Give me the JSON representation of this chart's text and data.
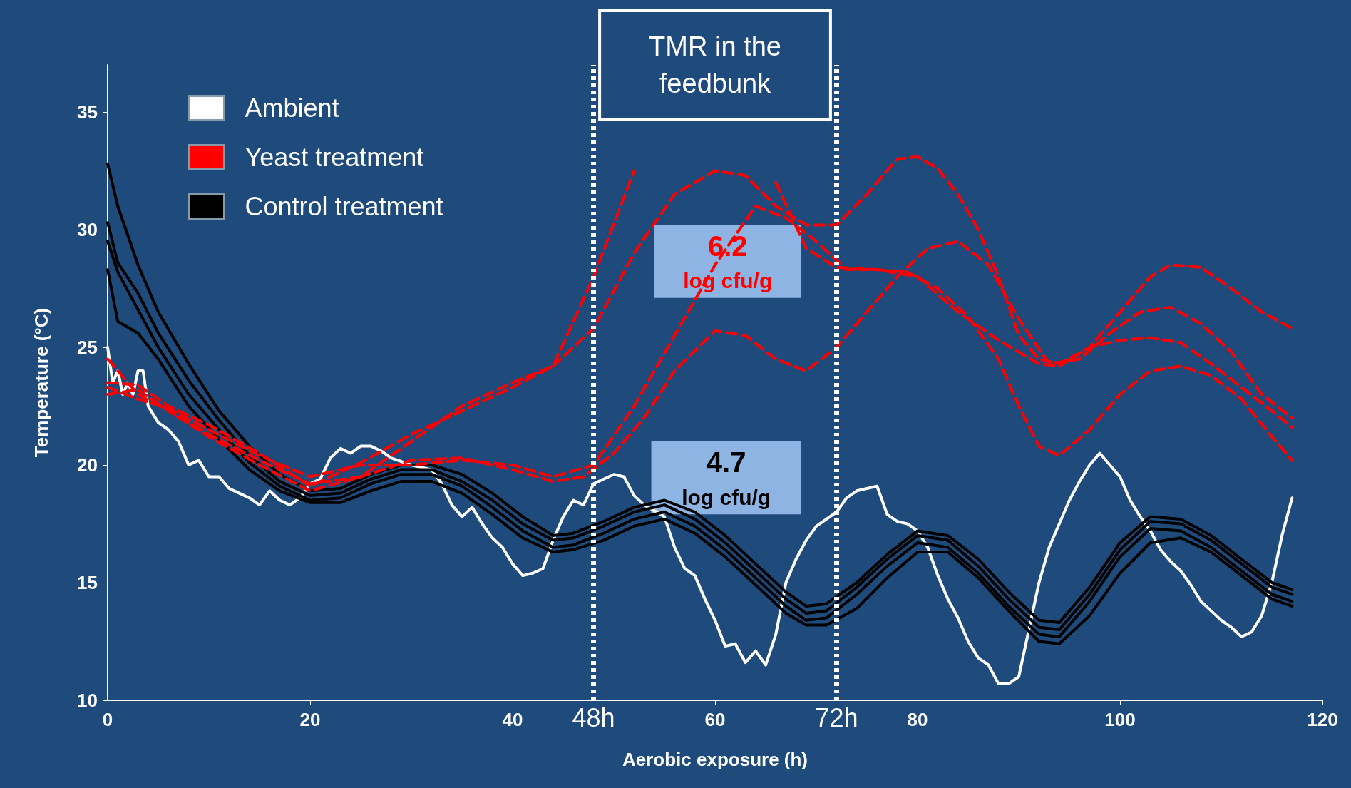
{
  "chart_data": {
    "type": "line",
    "xlabel": "Aerobic exposure (h)",
    "ylabel": "Temperature (°C)",
    "xlim": [
      0,
      120
    ],
    "xticks": [
      0,
      20,
      40,
      60,
      80,
      100,
      120
    ],
    "ylim": [
      10,
      37
    ],
    "yticks": [
      10,
      15,
      20,
      25,
      30,
      35
    ],
    "grid": false,
    "legend": "top left",
    "marker": "none",
    "annotations": [
      "TMR in the\nfeedbunk",
      "6.2\nlog cfu/g",
      "4.7\nlog cfu/g"
    ],
    "ref_lines": [
      {
        "axis": "x",
        "value": 48,
        "label": "48h",
        "color": "#ffffff",
        "line_style": "dotted"
      },
      {
        "axis": "x",
        "value": 72,
        "label": "72h",
        "color": "#ffffff",
        "line_style": "dotted"
      }
    ],
    "series": [
      {
        "name": "Ambient",
        "color": "#ffffff",
        "line_style": "solid",
        "x": [
          0,
          0.5,
          1,
          1.5,
          2,
          2.5,
          3,
          3.5,
          4,
          5,
          6,
          7,
          8,
          9,
          10,
          11,
          12,
          13,
          14,
          15,
          16,
          17,
          18,
          19,
          20,
          21,
          22,
          23,
          24,
          25,
          26,
          27,
          28,
          30,
          32,
          33,
          34,
          35,
          36,
          37,
          38,
          39,
          40,
          41,
          42,
          43,
          44,
          45,
          46,
          47,
          48,
          49,
          50,
          51,
          52,
          53,
          55,
          56,
          57,
          58,
          59,
          60,
          61,
          62,
          63,
          64,
          65,
          66,
          67,
          68,
          69,
          70,
          72,
          73,
          74,
          75,
          76,
          77,
          78,
          79,
          80,
          81,
          82,
          83,
          84,
          85,
          86,
          87,
          88,
          89,
          90,
          91,
          92,
          93,
          94,
          95,
          96,
          97,
          98,
          99,
          100,
          101,
          102,
          103,
          104,
          105,
          106,
          107,
          108,
          109,
          110,
          111,
          112,
          113,
          114,
          115,
          116,
          117
        ],
        "values": [
          25,
          23.5,
          24,
          23,
          23.5,
          23,
          24,
          24,
          22.5,
          21.8,
          21.5,
          21,
          20,
          20.2,
          19.5,
          19.5,
          19,
          18.8,
          18.6,
          18.3,
          18.9,
          18.5,
          18.3,
          18.6,
          19.2,
          19.4,
          20.3,
          20.7,
          20.5,
          20.8,
          20.8,
          20.6,
          20.3,
          20,
          19.8,
          19.2,
          18.3,
          17.8,
          18.2,
          17.5,
          16.9,
          16.5,
          15.8,
          15.3,
          15.4,
          15.6,
          16.8,
          17.8,
          18.5,
          18.3,
          19.2,
          19.4,
          19.6,
          19.5,
          18.7,
          18.3,
          17.8,
          16.5,
          15.6,
          15.3,
          14.3,
          13.4,
          12.3,
          12.4,
          11.6,
          12.1,
          11.5,
          12.8,
          15,
          16,
          16.8,
          17.4,
          18,
          18.6,
          18.9,
          19,
          19.1,
          17.9,
          17.6,
          17.5,
          17.2,
          16.5,
          15.3,
          14.3,
          13.5,
          12.5,
          11.8,
          11.5,
          10.7,
          10.7,
          11,
          13,
          15,
          16.5,
          17.5,
          18.5,
          19.3,
          20,
          20.5,
          20,
          19.5,
          18.5,
          17.8,
          17.2,
          16.4,
          15.9,
          15.5,
          14.9,
          14.2,
          13.8,
          13.4,
          13.1,
          12.7,
          12.9,
          13.6,
          15,
          17,
          18.6
        ]
      },
      {
        "name": "Yeast treatment",
        "color": "#ff0000",
        "line_style": "dashed",
        "x": [
          0,
          3,
          6,
          10,
          15,
          20,
          25,
          30,
          35,
          40,
          44,
          48,
          52,
          56,
          60,
          63,
          66,
          69,
          72,
          76,
          80,
          84,
          88,
          90,
          92,
          94,
          97,
          100,
          103,
          106,
          109,
          112,
          115,
          117
        ],
        "values": [
          24.5,
          23,
          22.3,
          21.3,
          20.2,
          19.2,
          19.5,
          21,
          22.5,
          23.5,
          24.2,
          28,
          32.5,
          null,
          null,
          null,
          32,
          29.2,
          28.4,
          28.3,
          28,
          26.5,
          25.3,
          24.8,
          24.3,
          24.2,
          25,
          25.3,
          25.4,
          25.2,
          24.3,
          23.3,
          22.3,
          21.6
        ]
      },
      {
        "color": "#ff0000",
        "line_style": "dashed",
        "x": [
          0,
          3,
          6,
          10,
          15,
          20,
          25,
          30,
          35,
          40,
          44,
          48,
          52,
          56,
          60,
          63,
          66,
          69,
          72,
          75,
          78,
          80,
          82,
          84,
          86,
          88,
          90,
          92,
          94,
          97,
          100,
          103,
          105,
          108,
          111,
          114,
          117
        ],
        "values": [
          23.5,
          23.4,
          22.5,
          21.7,
          20.5,
          19.1,
          20.1,
          21.3,
          22.3,
          23.3,
          24.2,
          25.8,
          29,
          31.5,
          32.5,
          32.3,
          31,
          30.2,
          30.2,
          31.5,
          33,
          33.1,
          32.6,
          31.5,
          30,
          28,
          25.5,
          24.5,
          24.3,
          25,
          26.5,
          28,
          28.5,
          28.4,
          27.5,
          26.5,
          25.8
        ]
      },
      {
        "color": "#ff0000",
        "line_style": "dashed",
        "x": [
          0,
          3,
          6,
          10,
          15,
          20,
          25,
          30,
          35,
          40,
          44,
          47,
          50,
          53,
          56,
          60,
          63,
          66,
          69,
          72,
          75,
          78,
          81,
          84,
          87,
          90,
          93,
          96,
          99,
          102,
          105,
          108,
          111,
          114,
          117
        ],
        "values": [
          23,
          23.2,
          22.3,
          21.2,
          20,
          18.9,
          19.5,
          20.2,
          20.3,
          19.8,
          19.3,
          19.5,
          20.5,
          22,
          24,
          25.7,
          25.5,
          24.5,
          24,
          25,
          26.5,
          28,
          29.2,
          29.5,
          28.5,
          26.2,
          24.3,
          24.5,
          25.6,
          26.5,
          26.7,
          26,
          24.8,
          23,
          22
        ]
      },
      {
        "color": "#ff0000",
        "line_style": "dashed",
        "x": [
          0,
          3,
          6,
          10,
          15,
          20,
          25,
          30,
          35,
          40,
          44,
          48,
          52,
          56,
          60,
          64,
          67,
          70,
          73,
          76,
          79,
          82,
          85,
          88,
          90,
          92,
          94,
          97,
          100,
          103,
          106,
          109,
          112,
          115,
          117
        ],
        "values": [
          23.3,
          22.8,
          22.4,
          21.5,
          20.4,
          19.5,
          20,
          20,
          20.2,
          20,
          19.5,
          20,
          22.5,
          25.5,
          28.5,
          31,
          30.5,
          29.5,
          28.3,
          28.3,
          28.2,
          27.5,
          26.3,
          24.5,
          22.5,
          20.8,
          20.4,
          21.5,
          23,
          24,
          24.2,
          23.8,
          22.8,
          21.2,
          20.2
        ]
      },
      {
        "name": "Control treatment",
        "color": "#000000",
        "line_style": "solid",
        "x": [
          0,
          1,
          3,
          5,
          8,
          11,
          14,
          17,
          20,
          23,
          26,
          29,
          32,
          35,
          38,
          41,
          44,
          46,
          49,
          52,
          55,
          58,
          61,
          64,
          67,
          69,
          71,
          74,
          77,
          80,
          83,
          86,
          89,
          92,
          94,
          97,
          100,
          103,
          106,
          109,
          112,
          115,
          117
        ],
        "values": [
          32.8,
          31,
          28.5,
          26.5,
          24.3,
          22.3,
          20.8,
          19.6,
          18.9,
          19,
          19.6,
          20,
          20,
          19.6,
          18.8,
          17.8,
          17,
          17.1,
          17.6,
          18.2,
          18.5,
          18,
          17,
          15.8,
          14.6,
          14,
          14.1,
          15,
          16.2,
          17.2,
          17,
          16,
          14.6,
          13.4,
          13.3,
          14.8,
          16.7,
          17.8,
          17.7,
          17,
          16,
          15,
          14.7
        ]
      },
      {
        "color": "#000000",
        "line_style": "solid",
        "x": [
          0,
          1,
          3,
          5,
          8,
          11,
          14,
          17,
          20,
          23,
          26,
          29,
          32,
          35,
          38,
          41,
          44,
          46,
          49,
          52,
          55,
          58,
          61,
          64,
          67,
          69,
          71,
          74,
          77,
          80,
          83,
          86,
          89,
          92,
          94,
          97,
          100,
          103,
          106,
          109,
          112,
          115,
          117
        ],
        "values": [
          30.3,
          28.6,
          27.3,
          25.6,
          23.6,
          21.9,
          20.4,
          19.3,
          18.7,
          18.8,
          19.4,
          19.8,
          19.8,
          19.3,
          18.5,
          17.5,
          16.8,
          16.9,
          17.4,
          18,
          18.3,
          17.7,
          16.7,
          15.5,
          14.3,
          13.7,
          13.8,
          14.8,
          16,
          17,
          16.8,
          15.7,
          14.3,
          13.1,
          13,
          14.5,
          16.4,
          17.6,
          17.5,
          16.8,
          15.8,
          14.8,
          14.5
        ]
      },
      {
        "color": "#000000",
        "line_style": "solid",
        "x": [
          0,
          1,
          3,
          5,
          8,
          11,
          14,
          17,
          20,
          23,
          26,
          29,
          32,
          35,
          38,
          41,
          44,
          46,
          49,
          52,
          55,
          58,
          61,
          64,
          67,
          69,
          71,
          74,
          77,
          80,
          83,
          86,
          89,
          92,
          94,
          97,
          100,
          103,
          106,
          109,
          112,
          115,
          117
        ],
        "values": [
          29.5,
          28.2,
          26.6,
          25,
          23,
          21.5,
          20.1,
          19.1,
          18.5,
          18.6,
          19.2,
          19.6,
          19.6,
          19.1,
          18.2,
          17.2,
          16.5,
          16.6,
          17.1,
          17.7,
          18,
          17.4,
          16.4,
          15.2,
          14,
          13.4,
          13.5,
          14.5,
          15.7,
          16.7,
          16.5,
          15.4,
          14,
          12.8,
          12.7,
          14.2,
          16.1,
          17.3,
          17.2,
          16.5,
          15.5,
          14.5,
          14.2
        ]
      },
      {
        "color": "#000000",
        "line_style": "solid",
        "x": [
          0,
          1,
          3,
          5,
          8,
          11,
          14,
          17,
          20,
          23,
          26,
          29,
          32,
          35,
          38,
          41,
          44,
          46,
          49,
          52,
          55,
          58,
          61,
          64,
          67,
          69,
          71,
          74,
          77,
          80,
          83,
          86,
          89,
          92,
          94,
          97,
          100,
          103,
          106,
          109,
          112,
          115,
          117
        ],
        "values": [
          28.3,
          26.1,
          25.6,
          24.5,
          22.5,
          21.1,
          19.8,
          18.9,
          18.4,
          18.4,
          18.9,
          19.3,
          19.3,
          18.8,
          17.9,
          16.9,
          16.3,
          16.4,
          16.8,
          17.4,
          17.7,
          17.1,
          16.1,
          14.9,
          13.7,
          13.2,
          13.2,
          13.9,
          15.2,
          16.3,
          16.3,
          15.2,
          13.8,
          12.5,
          12.4,
          13.6,
          15.4,
          16.7,
          16.9,
          16.3,
          15.3,
          14.3,
          14
        ]
      }
    ]
  }
}
